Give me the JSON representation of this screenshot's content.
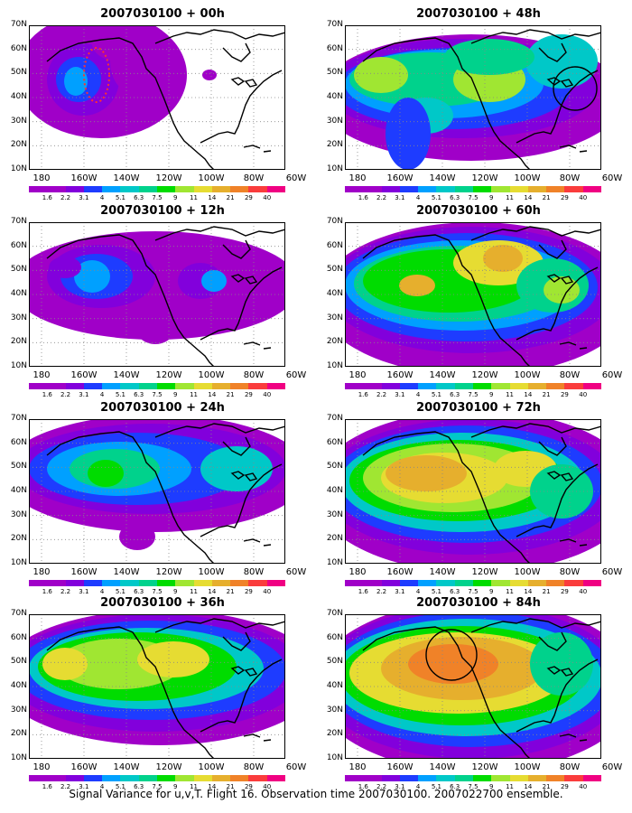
{
  "panels": [
    {
      "title": "2007030100 + 00h"
    },
    {
      "title": "2007030100 + 48h"
    },
    {
      "title": "2007030100 + 12h"
    },
    {
      "title": "2007030100 + 60h"
    },
    {
      "title": "2007030100 + 24h"
    },
    {
      "title": "2007030100 + 72h"
    },
    {
      "title": "2007030100 + 36h"
    },
    {
      "title": "2007030100 + 84h"
    }
  ],
  "axes": {
    "lat_labels": [
      "70N",
      "60N",
      "50N",
      "40N",
      "30N",
      "20N",
      "10N"
    ],
    "lon_labels": [
      "180",
      "160W",
      "140W",
      "120W",
      "100W",
      "80W",
      "60W"
    ]
  },
  "colorbar": {
    "labels": [
      "1.6",
      "2.2",
      "3.1",
      "4",
      "5.1",
      "6.3",
      "7.5",
      "9",
      "11",
      "14",
      "21",
      "29",
      "40"
    ],
    "colors": [
      "#a000c8",
      "#8200dc",
      "#1e3cff",
      "#00a0ff",
      "#00c8c8",
      "#00d28c",
      "#00dc00",
      "#a0e632",
      "#e6dc32",
      "#e6af2d",
      "#f08228",
      "#fa3c3c",
      "#f00082"
    ]
  },
  "footer": "Signal Variance for u,v,T. Flight 16. Observation time 2007030100. 2007022700 ensemble."
}
